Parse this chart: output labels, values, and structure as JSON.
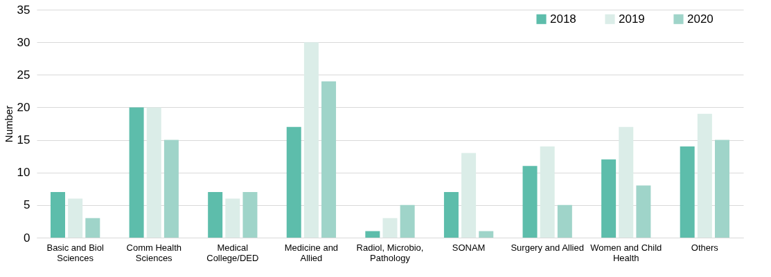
{
  "chart_data": {
    "type": "bar",
    "ylabel": "Number",
    "categories": [
      "Basic and Biol Sciences",
      "Comm Health Sciences",
      "Medical College/DED",
      "Medicine and Allied",
      "Radiol, Microbio, Pathology",
      "SONAM",
      "Surgery and Allied",
      "Women and Child Health",
      "Others"
    ],
    "series": [
      {
        "name": "2018",
        "color": "#5dbdab",
        "values": [
          7,
          20,
          7,
          17,
          1,
          7,
          11,
          12,
          14
        ]
      },
      {
        "name": "2019",
        "color": "#dbede8",
        "values": [
          6,
          20,
          6,
          30,
          3,
          13,
          14,
          17,
          19
        ]
      },
      {
        "name": "2020",
        "color": "#9fd4c9",
        "values": [
          3,
          15,
          7,
          24,
          5,
          1,
          5,
          8,
          15
        ]
      }
    ],
    "ylim": [
      0,
      35
    ],
    "yticks": [
      0,
      5,
      10,
      15,
      20,
      25,
      30,
      35
    ],
    "grid": "y",
    "legend": "top right"
  }
}
